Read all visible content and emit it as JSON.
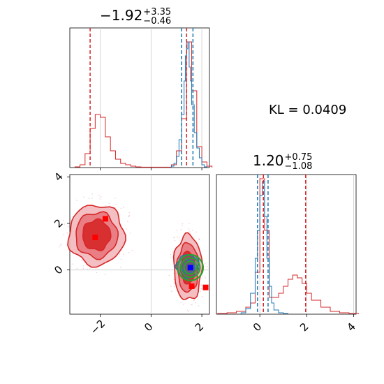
{
  "chart_data": [
    {
      "type": "histogram",
      "panel": "top-left",
      "title": "-1.92",
      "title_plus": "+3.35",
      "title_minus": "-0.46",
      "xlim": [
        -3.2,
        2.3
      ],
      "ylim": [
        0,
        1.0
      ],
      "x_ticks": [
        -2,
        0,
        2
      ],
      "red_line_x": -2.4,
      "red_center_x": 1.4,
      "blue_lines_x": [
        1.2,
        1.4,
        1.65
      ],
      "red_hist": {
        "color": "#d62728",
        "bins": [
          -3.0,
          -2.8,
          -2.6,
          -2.4,
          -2.2,
          -2.0,
          -1.8,
          -1.6,
          -1.4,
          -1.2,
          -1.0,
          -0.8,
          -0.6,
          -0.4,
          0.8,
          1.0,
          1.2,
          1.4,
          1.6,
          1.8,
          2.0,
          2.2
        ],
        "values": [
          0.005,
          0.02,
          0.1,
          0.28,
          0.38,
          0.36,
          0.22,
          0.12,
          0.06,
          0.03,
          0.02,
          0.01,
          0.005,
          0.003,
          0.02,
          0.12,
          0.35,
          0.9,
          0.55,
          0.15,
          0.04,
          0.01
        ]
      },
      "blue_hist": {
        "color": "#1f77b4",
        "bins": [
          0.8,
          0.9,
          1.0,
          1.1,
          1.2,
          1.3,
          1.35,
          1.4,
          1.45,
          1.5,
          1.55,
          1.6,
          1.7,
          1.8,
          1.9,
          2.0,
          2.1
        ],
        "values": [
          0.01,
          0.03,
          0.08,
          0.2,
          0.38,
          0.62,
          0.8,
          0.85,
          0.9,
          0.72,
          0.62,
          0.45,
          0.25,
          0.14,
          0.07,
          0.02,
          0.005
        ]
      }
    },
    {
      "type": "contour",
      "panel": "bottom-left",
      "xlim": [
        -3.2,
        2.3
      ],
      "ylim": [
        -1.9,
        4.1
      ],
      "x_ticks": [
        -2,
        0,
        2
      ],
      "y_ticks": [
        0,
        2,
        4
      ],
      "red_contours": [
        {
          "cx": -2.15,
          "cy": 1.5,
          "rx": 1.1,
          "ry": 1.3
        },
        {
          "cx": 1.45,
          "cy": 0.1,
          "rx": 0.55,
          "ry": 1.4
        }
      ],
      "blue_contour": {
        "cx": 1.45,
        "cy": 0.15,
        "rx": 0.45,
        "ry": 0.5
      },
      "green_contour": {
        "cx": 1.55,
        "cy": 0.1,
        "rx": 0.5,
        "ry": 0.55
      },
      "red_markers": [
        [
          -1.8,
          2.2
        ],
        [
          -2.2,
          1.4
        ],
        [
          1.6,
          -0.7
        ],
        [
          2.15,
          -0.75
        ]
      ],
      "blue_marker": [
        1.55,
        0.1
      ],
      "gridline_x": 0,
      "gridline_y": 0
    },
    {
      "type": "histogram",
      "panel": "bottom-right",
      "title": "1.20",
      "title_plus": "+0.75",
      "title_minus": "-1.08",
      "xlim": [
        -1.85,
        4.1
      ],
      "ylim": [
        0,
        1.0
      ],
      "x_ticks": [
        0,
        2,
        4
      ],
      "red_line_x": 1.95,
      "red_center_x": 0.15,
      "blue_lines_x": [
        -0.1,
        0.15,
        0.35
      ],
      "red_hist": {
        "color": "#d62728",
        "bins": [
          -1.8,
          -1.4,
          -1.0,
          -0.6,
          -0.4,
          -0.2,
          0.0,
          0.2,
          0.4,
          0.6,
          0.8,
          1.0,
          1.2,
          1.4,
          1.6,
          1.8,
          2.0,
          2.2,
          2.6,
          3.0,
          3.4,
          3.8
        ],
        "values": [
          0.005,
          0.01,
          0.02,
          0.05,
          0.08,
          0.3,
          0.97,
          0.6,
          0.12,
          0.12,
          0.15,
          0.2,
          0.25,
          0.28,
          0.26,
          0.22,
          0.15,
          0.1,
          0.05,
          0.02,
          0.01,
          0.005
        ]
      },
      "blue_hist": {
        "color": "#1f77b4",
        "bins": [
          -0.8,
          -0.6,
          -0.4,
          -0.2,
          -0.1,
          0.0,
          0.1,
          0.2,
          0.3,
          0.4,
          0.5,
          0.6,
          0.8,
          1.0
        ],
        "values": [
          0.01,
          0.04,
          0.15,
          0.4,
          0.6,
          0.85,
          0.95,
          0.7,
          0.4,
          0.2,
          0.08,
          0.03,
          0.01,
          0.005
        ]
      }
    }
  ],
  "kl_text": "KL = 0.0409"
}
